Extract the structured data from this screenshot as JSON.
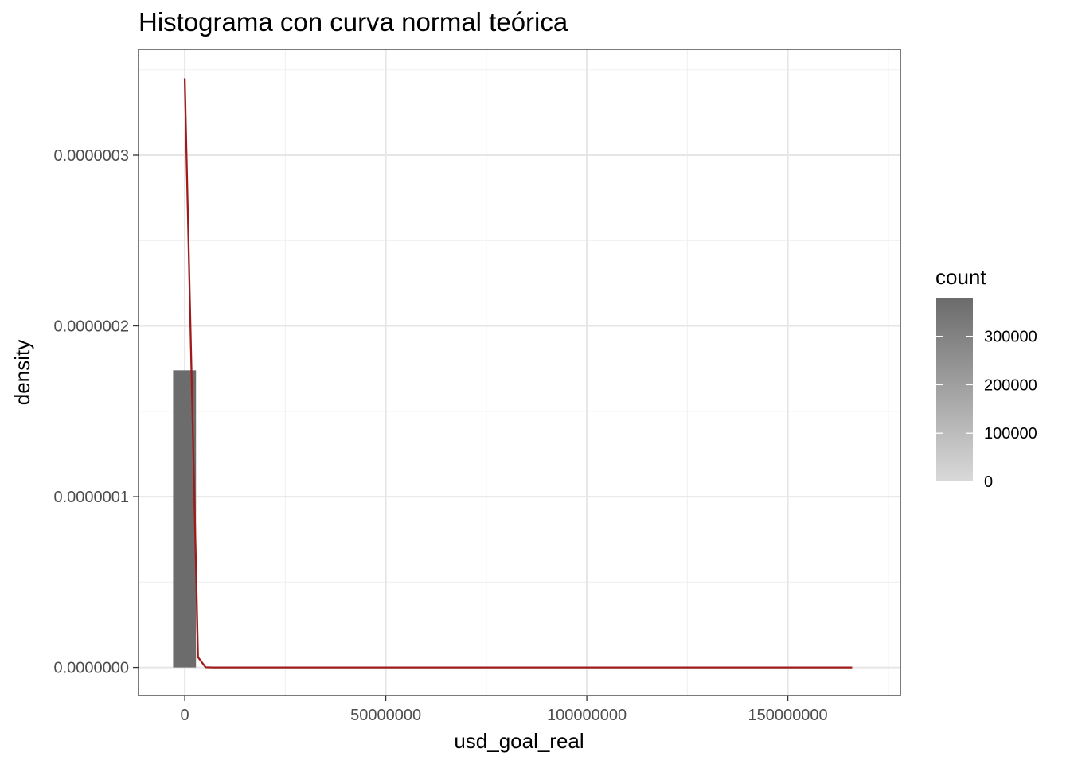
{
  "chart_data": {
    "type": "bar",
    "title": "Histograma con curva normal teórica",
    "xlabel": "usd_goal_real",
    "ylabel": "density",
    "xlim": [
      -11500000,
      178000000
    ],
    "ylim": [
      -1.65e-08,
      3.62e-07
    ],
    "x_ticks": [
      {
        "value": 0,
        "label": "0"
      },
      {
        "value": 50000000,
        "label": "50000000"
      },
      {
        "value": 100000000,
        "label": "100000000"
      },
      {
        "value": 150000000,
        "label": "150000000"
      }
    ],
    "y_ticks": [
      {
        "value": 0,
        "label": "0.0000000"
      },
      {
        "value": 1e-07,
        "label": "0.0000001"
      },
      {
        "value": 2e-07,
        "label": "0.0000002"
      },
      {
        "value": 3e-07,
        "label": "0.0000003"
      }
    ],
    "x_minor_grid": [
      25000000,
      75000000,
      125000000,
      175000000
    ],
    "y_minor_grid": [
      5e-08,
      1.5e-07,
      2.5e-07,
      3.5e-07
    ],
    "grid": true,
    "histogram": {
      "bins": [
        {
          "x_start": -2900000,
          "x_end": 2800000,
          "density": 1.74e-07,
          "count": 378000
        }
      ],
      "fill_scale": {
        "low": "#d9d9d9",
        "high": "#6b6b6b",
        "max_count": 380000
      }
    },
    "normal_curve": {
      "name": "curva normal teórica",
      "color": "#9e1b1b",
      "x": [
        0,
        2800000,
        3300000,
        5200000,
        7000000,
        50000000,
        100000000,
        166000000
      ],
      "y": [
        3.45e-07,
        5.8e-08,
        6e-09,
        1e-10,
        0,
        0,
        0,
        0
      ]
    },
    "legend": {
      "title": "count",
      "position": "right",
      "range": [
        0,
        380000
      ],
      "ticks": [
        {
          "value": 0,
          "label": "0"
        },
        {
          "value": 100000,
          "label": "100000"
        },
        {
          "value": 200000,
          "label": "200000"
        },
        {
          "value": 300000,
          "label": "300000"
        }
      ]
    }
  }
}
